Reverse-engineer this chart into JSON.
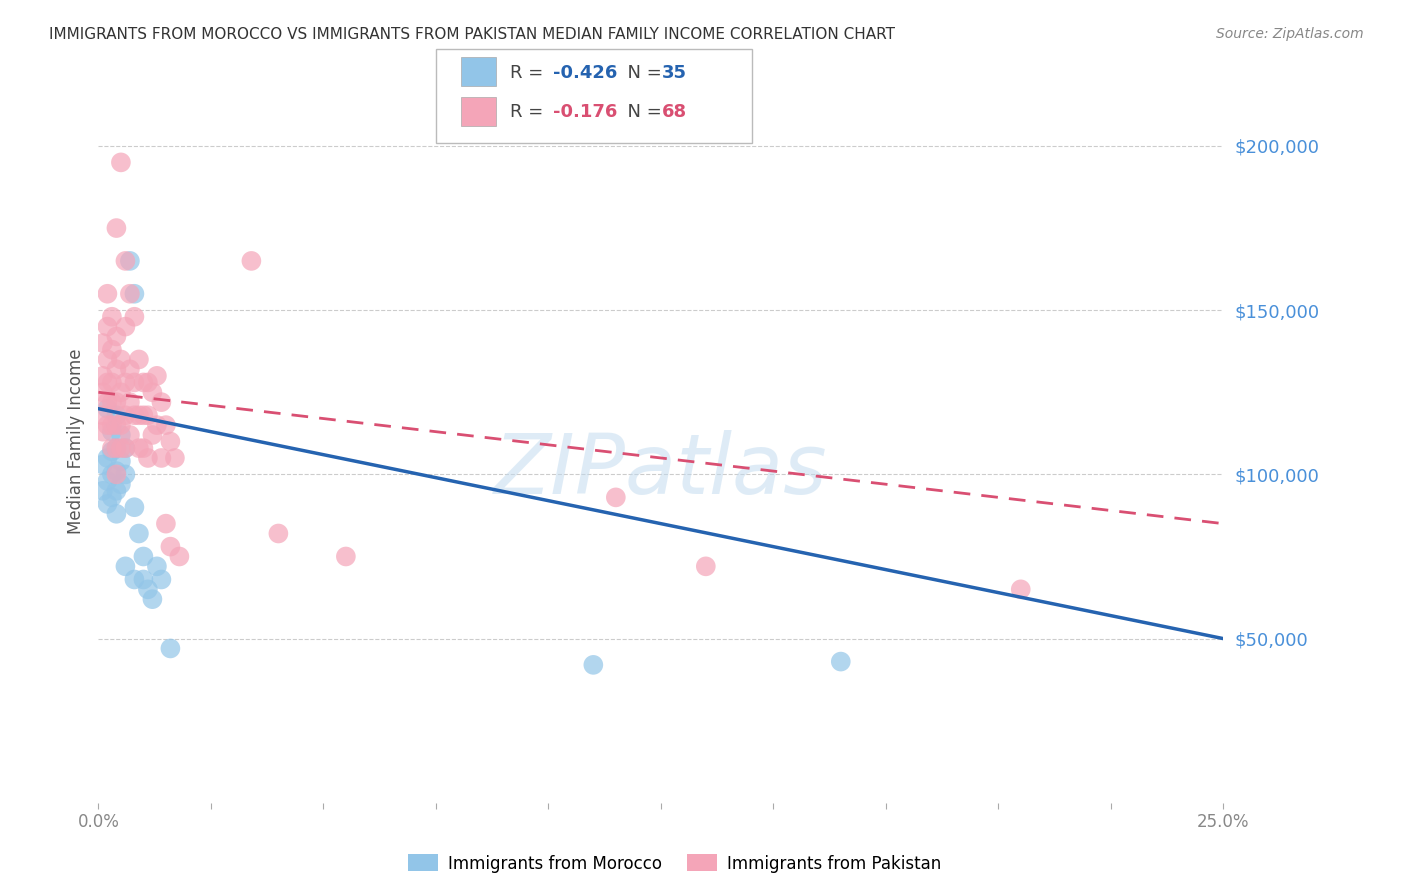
{
  "title": "IMMIGRANTS FROM MOROCCO VS IMMIGRANTS FROM PAKISTAN MEDIAN FAMILY INCOME CORRELATION CHART",
  "source": "Source: ZipAtlas.com",
  "ylabel": "Median Family Income",
  "watermark": "ZIPatlas",
  "xlim": [
    0.0,
    0.25
  ],
  "ylim": [
    0,
    220000
  ],
  "yticks": [
    50000,
    100000,
    150000,
    200000
  ],
  "ytick_labels": [
    "$50,000",
    "$100,000",
    "$150,000",
    "$200,000"
  ],
  "morocco_color": "#92C5E8",
  "pakistan_color": "#F4A5B8",
  "morocco_line_color": "#2563B0",
  "pakistan_line_color": "#D94F72",
  "legend_morocco_R": "-0.426",
  "legend_morocco_N": "35",
  "legend_pakistan_R": "-0.176",
  "legend_pakistan_N": "68",
  "morocco_scatter": [
    [
      0.001,
      103000
    ],
    [
      0.001,
      95000
    ],
    [
      0.002,
      120000
    ],
    [
      0.002,
      105000
    ],
    [
      0.002,
      98000
    ],
    [
      0.002,
      91000
    ],
    [
      0.003,
      113000
    ],
    [
      0.003,
      107000
    ],
    [
      0.003,
      100000
    ],
    [
      0.003,
      93000
    ],
    [
      0.004,
      118000
    ],
    [
      0.004,
      108000
    ],
    [
      0.004,
      101000
    ],
    [
      0.004,
      95000
    ],
    [
      0.004,
      88000
    ],
    [
      0.005,
      112000
    ],
    [
      0.005,
      104000
    ],
    [
      0.005,
      97000
    ],
    [
      0.006,
      108000
    ],
    [
      0.006,
      100000
    ],
    [
      0.006,
      72000
    ],
    [
      0.007,
      165000
    ],
    [
      0.008,
      155000
    ],
    [
      0.008,
      90000
    ],
    [
      0.008,
      68000
    ],
    [
      0.009,
      82000
    ],
    [
      0.01,
      75000
    ],
    [
      0.01,
      68000
    ],
    [
      0.011,
      65000
    ],
    [
      0.012,
      62000
    ],
    [
      0.013,
      72000
    ],
    [
      0.014,
      68000
    ],
    [
      0.016,
      47000
    ],
    [
      0.11,
      42000
    ],
    [
      0.165,
      43000
    ]
  ],
  "pakistan_scatter": [
    [
      0.001,
      140000
    ],
    [
      0.001,
      130000
    ],
    [
      0.001,
      125000
    ],
    [
      0.001,
      118000
    ],
    [
      0.001,
      113000
    ],
    [
      0.002,
      155000
    ],
    [
      0.002,
      145000
    ],
    [
      0.002,
      135000
    ],
    [
      0.002,
      128000
    ],
    [
      0.002,
      122000
    ],
    [
      0.002,
      115000
    ],
    [
      0.003,
      148000
    ],
    [
      0.003,
      138000
    ],
    [
      0.003,
      128000
    ],
    [
      0.003,
      122000
    ],
    [
      0.003,
      115000
    ],
    [
      0.003,
      108000
    ],
    [
      0.004,
      175000
    ],
    [
      0.004,
      142000
    ],
    [
      0.004,
      132000
    ],
    [
      0.004,
      122000
    ],
    [
      0.004,
      115000
    ],
    [
      0.004,
      108000
    ],
    [
      0.004,
      100000
    ],
    [
      0.005,
      195000
    ],
    [
      0.005,
      135000
    ],
    [
      0.005,
      125000
    ],
    [
      0.005,
      115000
    ],
    [
      0.005,
      108000
    ],
    [
      0.006,
      165000
    ],
    [
      0.006,
      145000
    ],
    [
      0.006,
      128000
    ],
    [
      0.006,
      118000
    ],
    [
      0.006,
      108000
    ],
    [
      0.007,
      155000
    ],
    [
      0.007,
      132000
    ],
    [
      0.007,
      122000
    ],
    [
      0.007,
      112000
    ],
    [
      0.008,
      148000
    ],
    [
      0.008,
      128000
    ],
    [
      0.008,
      118000
    ],
    [
      0.009,
      135000
    ],
    [
      0.009,
      118000
    ],
    [
      0.009,
      108000
    ],
    [
      0.01,
      128000
    ],
    [
      0.01,
      118000
    ],
    [
      0.01,
      108000
    ],
    [
      0.011,
      128000
    ],
    [
      0.011,
      118000
    ],
    [
      0.011,
      105000
    ],
    [
      0.012,
      125000
    ],
    [
      0.012,
      112000
    ],
    [
      0.013,
      130000
    ],
    [
      0.013,
      115000
    ],
    [
      0.014,
      122000
    ],
    [
      0.014,
      105000
    ],
    [
      0.015,
      115000
    ],
    [
      0.015,
      85000
    ],
    [
      0.016,
      110000
    ],
    [
      0.016,
      78000
    ],
    [
      0.017,
      105000
    ],
    [
      0.018,
      75000
    ],
    [
      0.034,
      165000
    ],
    [
      0.04,
      82000
    ],
    [
      0.055,
      75000
    ],
    [
      0.115,
      93000
    ],
    [
      0.135,
      72000
    ],
    [
      0.205,
      65000
    ]
  ],
  "grid_color": "#cccccc",
  "background_color": "#ffffff",
  "title_color": "#333333",
  "ytick_color": "#4A90D9",
  "xtick_color": "#888888"
}
